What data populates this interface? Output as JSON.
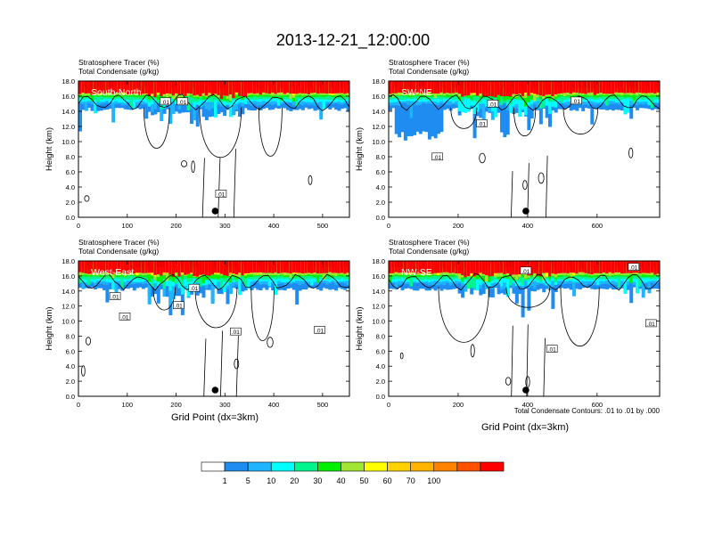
{
  "title": "2013-12-21_12:00:00",
  "common": {
    "label_line1": "Stratosphere Tracer   (%)",
    "label_line2": "Total Condensate   (g/kg)",
    "ylabel": "Height (km)",
    "xlabel": "Grid Point (dx=3km)",
    "contour_note": "Total Condensate Contours: .01 to .01 by .000",
    "contour_label": ".01"
  },
  "chart_data": [
    {
      "type": "heatmap",
      "name": "South-North",
      "xlim": [
        0,
        555
      ],
      "ylim": [
        0,
        18
      ],
      "xticks": [
        0,
        100,
        200,
        300,
        400,
        500
      ],
      "yticks": [
        0,
        2,
        4,
        6,
        8,
        10,
        12,
        14,
        16,
        18
      ],
      "marker_x": 280,
      "contour_labels": [
        {
          "x": 178,
          "y": 15.2
        },
        {
          "x": 213,
          "y": 15.2
        },
        {
          "x": 292,
          "y": 3.0
        }
      ]
    },
    {
      "type": "heatmap",
      "name": "SW-NE",
      "xlim": [
        0,
        780
      ],
      "ylim": [
        0,
        18
      ],
      "xticks": [
        0,
        200,
        400,
        600
      ],
      "yticks": [
        0,
        2,
        4,
        6,
        8,
        10,
        12,
        14,
        16,
        18
      ],
      "marker_x": 395,
      "contour_labels": [
        {
          "x": 140,
          "y": 7.9
        },
        {
          "x": 268,
          "y": 12.3
        },
        {
          "x": 300,
          "y": 14.9
        },
        {
          "x": 540,
          "y": 15.3
        }
      ]
    },
    {
      "type": "heatmap",
      "name": "West-East",
      "xlim": [
        0,
        555
      ],
      "ylim": [
        0,
        18
      ],
      "xticks": [
        0,
        100,
        200,
        300,
        400,
        500
      ],
      "yticks": [
        0,
        2,
        4,
        6,
        8,
        10,
        12,
        14,
        16,
        18
      ],
      "marker_x": 280,
      "contour_labels": [
        {
          "x": 75,
          "y": 13.2
        },
        {
          "x": 95,
          "y": 10.5
        },
        {
          "x": 205,
          "y": 12.0
        },
        {
          "x": 237,
          "y": 14.3
        },
        {
          "x": 322,
          "y": 8.5
        },
        {
          "x": 494,
          "y": 8.7
        }
      ]
    },
    {
      "type": "heatmap",
      "name": "NW-SE",
      "xlim": [
        0,
        780
      ],
      "ylim": [
        0,
        18
      ],
      "xticks": [
        0,
        200,
        400,
        600
      ],
      "yticks": [
        0,
        2,
        4,
        6,
        8,
        10,
        12,
        14,
        16,
        18
      ],
      "marker_x": 395,
      "contour_labels": [
        {
          "x": 395,
          "y": 16.6
        },
        {
          "x": 470,
          "y": 6.2
        },
        {
          "x": 705,
          "y": 17.1
        },
        {
          "x": 755,
          "y": 9.6
        }
      ]
    }
  ],
  "colorbar": {
    "colors": [
      "#ffffff",
      "#1e8cf0",
      "#1eb4ff",
      "#00ffff",
      "#00f58c",
      "#00f000",
      "#a0e632",
      "#ffff00",
      "#ffd200",
      "#ffb400",
      "#ff8200",
      "#ff5000",
      "#ff0000"
    ],
    "labels": [
      "1",
      "5",
      "10",
      "20",
      "30",
      "40",
      "50",
      "60",
      "70",
      "100"
    ]
  }
}
